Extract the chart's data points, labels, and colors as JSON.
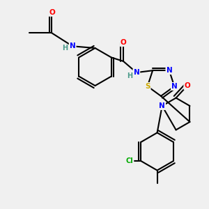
{
  "background_color": "#f0f0f0",
  "atom_colors": {
    "C": "#000000",
    "N": "#0000ff",
    "O": "#ff0000",
    "S": "#ccaa00",
    "Cl": "#00aa00",
    "H": "#4a9a8a"
  },
  "bond_color": "#000000",
  "bond_width": 1.5,
  "font_size_atoms": 7.5,
  "font_size_small": 7
}
